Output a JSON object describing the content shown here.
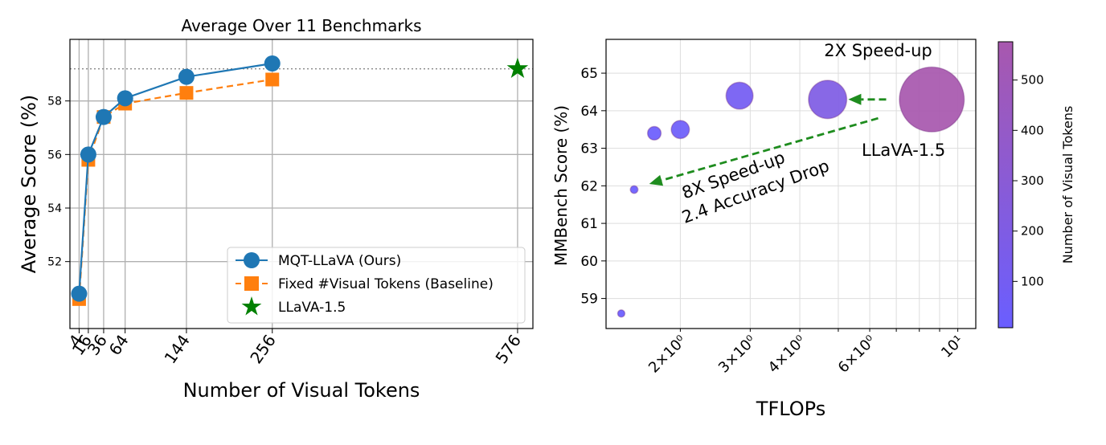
{
  "chart_data": [
    {
      "type": "line",
      "title": "Average Over 11 Benchmarks",
      "xlabel": "Number of Visual Tokens",
      "ylabel": "Average Score (%)",
      "xlim": [
        -8,
        596
      ],
      "ylim": [
        49.5,
        60.3
      ],
      "yticks": [
        52,
        54,
        56,
        58
      ],
      "ytick_labels": [
        "52",
        "54",
        "56",
        "58"
      ],
      "xticks": [
        4,
        16,
        36,
        64,
        144,
        256,
        576
      ],
      "xtick_labels": [
        "4",
        "16",
        "36",
        "64",
        "144",
        "256",
        "576"
      ],
      "grid": true,
      "reference_line_y": 59.2,
      "legend_position": "lower-right",
      "series": [
        {
          "name": "MQT-LLaVA (Ours)",
          "color": "#1f77b4",
          "marker": "circle",
          "linestyle": "solid",
          "x": [
            4,
            16,
            36,
            64,
            144,
            256
          ],
          "y": [
            50.8,
            56.0,
            57.4,
            58.1,
            58.9,
            59.4
          ]
        },
        {
          "name": "Fixed #Visual Tokens (Baseline)",
          "color": "#ff7f0e",
          "marker": "square",
          "linestyle": "dashed",
          "x": [
            4,
            16,
            36,
            64,
            144,
            256
          ],
          "y": [
            50.6,
            55.8,
            57.4,
            57.9,
            58.3,
            58.8
          ]
        },
        {
          "name": "LLaVA-1.5",
          "color": "#008000",
          "marker": "star",
          "linestyle": "none",
          "x": [
            576
          ],
          "y": [
            59.2
          ]
        }
      ]
    },
    {
      "type": "scatter",
      "xlabel": "TFLOPs",
      "ylabel": "MMBench Score (%)",
      "xscale": "log",
      "xlim": [
        1.3,
        11.1
      ],
      "ylim": [
        58.2,
        65.9
      ],
      "yticks": [
        59,
        60,
        61,
        62,
        63,
        64,
        65
      ],
      "ytick_labels": [
        "59",
        "60",
        "61",
        "62",
        "63",
        "64",
        "65"
      ],
      "xticks": [
        2,
        3,
        4,
        6,
        10
      ],
      "xtick_labels": [
        "2×10⁰",
        "3×10⁰",
        "4×10⁰",
        "6×10⁰",
        "10¹"
      ],
      "grid": true,
      "colormap_low": "#6a5eff",
      "colormap_high": "#a858ae",
      "points": [
        {
          "x": 1.42,
          "y": 58.6,
          "tokens": 2
        },
        {
          "x": 1.53,
          "y": 61.9,
          "tokens": 8
        },
        {
          "x": 1.72,
          "y": 63.4,
          "tokens": 25
        },
        {
          "x": 2.0,
          "y": 63.5,
          "tokens": 45
        },
        {
          "x": 2.82,
          "y": 64.4,
          "tokens": 100
        },
        {
          "x": 4.7,
          "y": 64.3,
          "tokens": 200
        },
        {
          "x": 8.6,
          "y": 64.3,
          "tokens": 576
        }
      ],
      "annotations": [
        {
          "text": "2X Speed-up",
          "x": 6.3,
          "y": 65.45
        },
        {
          "text": "LLaVA-1.5",
          "x": 7.3,
          "y": 62.8
        },
        {
          "text": "8X Speed-up",
          "x": 2.05,
          "y": 61.65
        },
        {
          "text": "2.4 Accuracy Drop",
          "x": 2.05,
          "y": 61.0
        }
      ],
      "arrows": [
        {
          "from": [
            6.6,
            64.3
          ],
          "to": [
            5.3,
            64.3
          ]
        },
        {
          "from": [
            6.3,
            63.8
          ],
          "to": [
            1.67,
            62.05
          ]
        }
      ],
      "colorbar": {
        "label": "Number of Visual Tokens",
        "range": [
          8,
          576
        ],
        "ticks": [
          100,
          200,
          300,
          400,
          500
        ],
        "tick_labels": [
          "100",
          "200",
          "300",
          "400",
          "500"
        ]
      }
    }
  ]
}
